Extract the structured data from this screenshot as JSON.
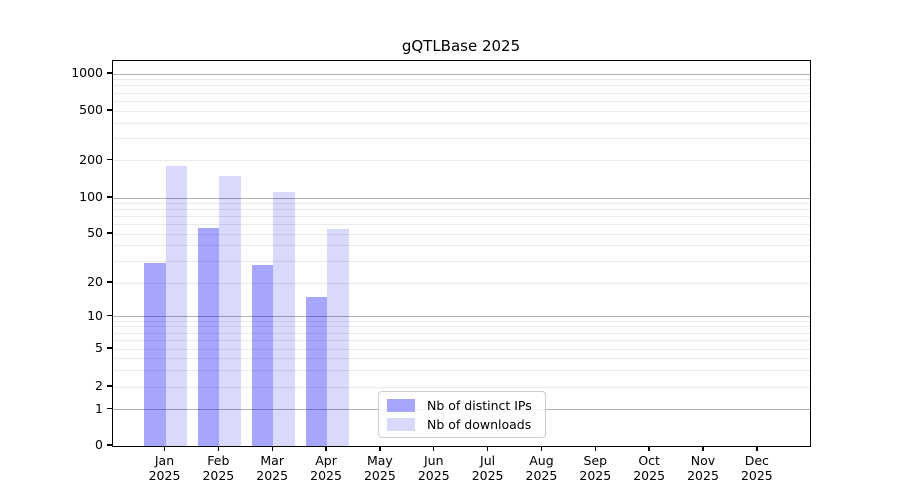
{
  "title": "gQTLBase 2025",
  "legend": {
    "position": "lower center",
    "items": [
      {
        "label": "Nb of distinct IPs"
      },
      {
        "label": "Nb of downloads"
      }
    ]
  },
  "colors": {
    "distinct_ips_bar": "rgba(0,0,245,0.35)",
    "downloads_bar": "rgba(0,0,245,0.15)",
    "major_gridline": "#b0b0b0",
    "minor_gridline": "#eaeaea",
    "spine": "#000000"
  },
  "chart_data": {
    "type": "bar",
    "title": "gQTLBase 2025",
    "x_months": [
      "Jan",
      "Feb",
      "Mar",
      "Apr",
      "May",
      "Jun",
      "Jul",
      "Aug",
      "Sep",
      "Oct",
      "Nov",
      "Dec"
    ],
    "x_year": "2025",
    "categories": [
      "Jan 2025",
      "Feb 2025",
      "Mar 2025",
      "Apr 2025",
      "May 2025",
      "Jun 2025",
      "Jul 2025",
      "Aug 2025",
      "Sep 2025",
      "Oct 2025",
      "Nov 2025",
      "Dec 2025"
    ],
    "series": [
      {
        "name": "Nb of distinct IPs",
        "color": "rgba(0,0,245,0.35)",
        "values": [
          29,
          56,
          28,
          15,
          0,
          0,
          0,
          0,
          0,
          0,
          0,
          0
        ]
      },
      {
        "name": "Nb of downloads",
        "color": "rgba(0,0,245,0.15)",
        "values": [
          182,
          150,
          112,
          55,
          0,
          0,
          0,
          0,
          0,
          0,
          0,
          0
        ]
      }
    ],
    "yticks": [
      0,
      1,
      2,
      5,
      10,
      20,
      50,
      100,
      200,
      500,
      1000
    ],
    "yscale": "symlog",
    "ylim": [
      0,
      1300
    ],
    "xlabel": "",
    "ylabel": "",
    "grid": "horizontal major and minor gridlines",
    "legend_position": "lower center inside axes"
  }
}
